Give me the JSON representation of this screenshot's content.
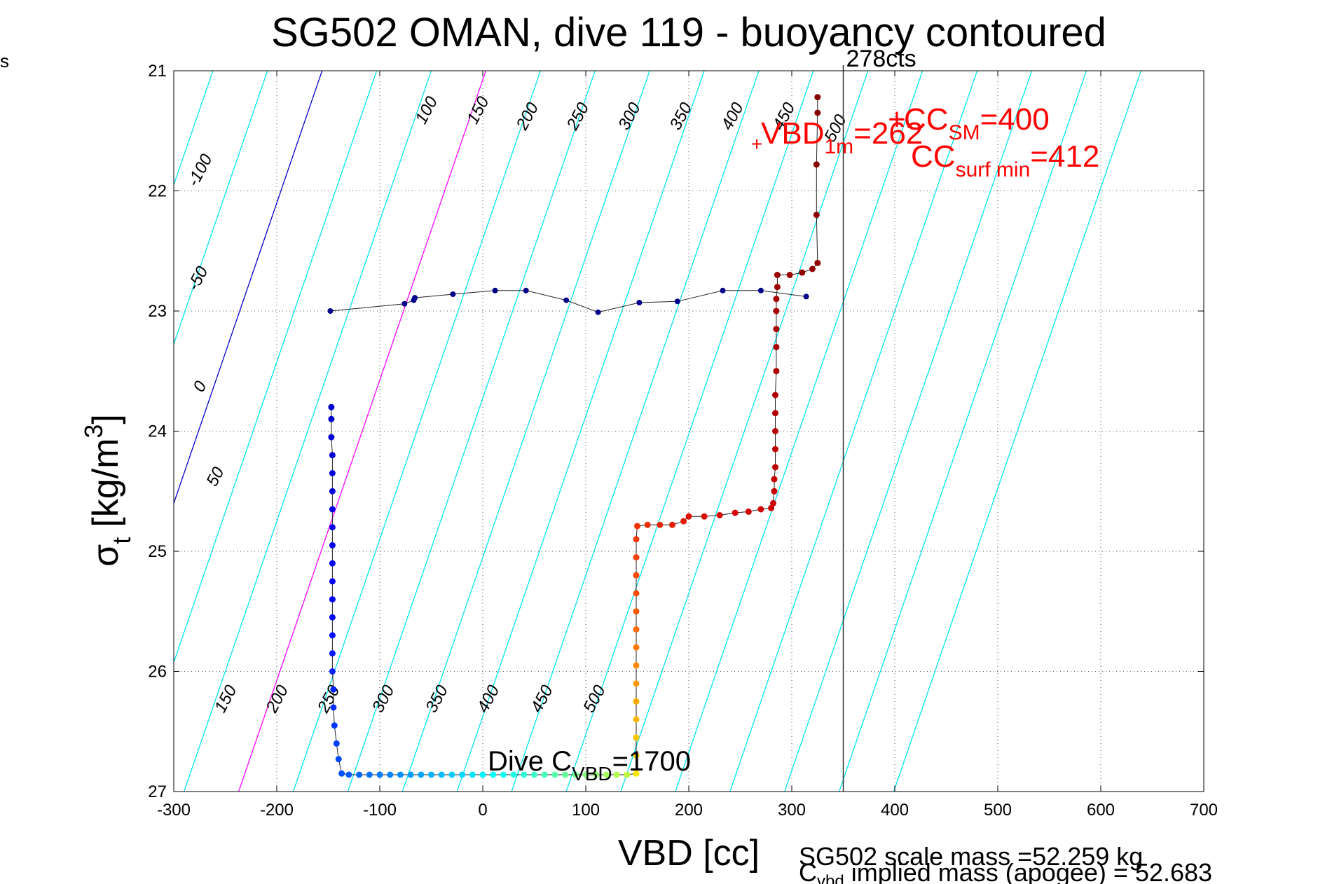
{
  "corner_label": "s",
  "chart_data": {
    "type": "scatter",
    "title": "SG502 OMAN, dive 119 - buoyancy contoured",
    "xlabel": "VBD [cc]",
    "ylabel_main": "σ",
    "ylabel_sub": "t",
    "ylabel_unit": "[kg/m",
    "ylabel_sup": "3",
    "ylabel_close": "]",
    "xlim": [
      -300,
      700
    ],
    "ylim": [
      27,
      21
    ],
    "y_reversed": true,
    "grid": true,
    "xticks": [
      -300,
      -200,
      -100,
      0,
      100,
      200,
      300,
      400,
      500,
      600,
      700
    ],
    "xtick_labels": [
      "-300",
      "-200",
      "-100",
      "0",
      "100",
      "200",
      "300",
      "400",
      "500",
      "600",
      "700"
    ],
    "yticks": [
      21,
      22,
      23,
      24,
      25,
      26,
      27
    ],
    "ytick_labels": [
      "21",
      "22",
      "23",
      "24",
      "25",
      "26",
      "27"
    ],
    "contours": {
      "sigma_span_per_line": 6,
      "vbd_shift_over_span": 240,
      "lines": [
        {
          "x_at_bottom": -290,
          "color": "#00e5ee"
        },
        {
          "x_at_bottom": -237,
          "color": "#ff00ff"
        },
        {
          "x_at_bottom": -184,
          "color": "#00e5ee"
        },
        {
          "x_at_bottom": -131,
          "color": "#00e5ee"
        },
        {
          "x_at_bottom": -78,
          "color": "#00e5ee"
        },
        {
          "x_at_bottom": -25,
          "color": "#00e5ee"
        },
        {
          "x_at_bottom": 28,
          "color": "#00e5ee"
        },
        {
          "x_at_bottom": 81,
          "color": "#00e5ee"
        },
        {
          "x_at_bottom": 134,
          "color": "#00e5ee"
        },
        {
          "x_at_bottom": 187,
          "color": "#00e5ee"
        },
        {
          "x_at_bottom": 240,
          "color": "#00e5ee"
        },
        {
          "x_at_bottom": 293,
          "color": "#00e5ee"
        },
        {
          "x_at_bottom": 346,
          "color": "#00e5ee"
        },
        {
          "x_at_bottom": 399,
          "color": "#00e5ee"
        },
        {
          "x_at_bottom": -343,
          "color": "#00e5ee"
        },
        {
          "x_at_bottom": -396,
          "color": "#0000cc"
        },
        {
          "x_at_bottom": -449,
          "color": "#00e5ee"
        },
        {
          "x_at_bottom": -502,
          "color": "#00e5ee"
        }
      ],
      "labels": [
        {
          "text": "-100",
          "x": -270,
          "y": 21.85
        },
        {
          "text": "-50",
          "x": -272,
          "y": 22.75
        },
        {
          "text": "0",
          "x": -270,
          "y": 23.65
        },
        {
          "text": "50",
          "x": -255,
          "y": 24.4
        },
        {
          "text": "100",
          "x": -50,
          "y": 21.35
        },
        {
          "text": "150",
          "x": 0,
          "y": 21.35
        },
        {
          "text": "200",
          "x": 48,
          "y": 21.4
        },
        {
          "text": "250",
          "x": 97,
          "y": 21.4
        },
        {
          "text": "300",
          "x": 147,
          "y": 21.4
        },
        {
          "text": "350",
          "x": 197,
          "y": 21.4
        },
        {
          "text": "400",
          "x": 247,
          "y": 21.4
        },
        {
          "text": "450",
          "x": 297,
          "y": 21.4
        },
        {
          "text": "500",
          "x": 347,
          "y": 21.5
        },
        {
          "text": "150",
          "x": -245,
          "y": 26.25
        },
        {
          "text": "200",
          "x": -195,
          "y": 26.25
        },
        {
          "text": "250",
          "x": -145,
          "y": 26.25
        },
        {
          "text": "300",
          "x": -92,
          "y": 26.25
        },
        {
          "text": "350",
          "x": -40,
          "y": 26.25
        },
        {
          "text": "400",
          "x": 10,
          "y": 26.25
        },
        {
          "text": "450",
          "x": 62,
          "y": 26.25
        },
        {
          "text": "500",
          "x": 113,
          "y": 26.25
        }
      ]
    },
    "reference_line": {
      "x": 350,
      "label": "278cts"
    },
    "series": [
      {
        "style": "dive",
        "color_scale": "jet",
        "points": [
          [
            -147,
            23.8
          ],
          [
            -147,
            23.9
          ],
          [
            -147,
            24.05
          ],
          [
            -146,
            24.2
          ],
          [
            -146,
            24.35
          ],
          [
            -146,
            24.5
          ],
          [
            -146,
            24.65
          ],
          [
            -146,
            24.8
          ],
          [
            -146,
            24.95
          ],
          [
            -146,
            25.1
          ],
          [
            -146,
            25.25
          ],
          [
            -146,
            25.4
          ],
          [
            -146,
            25.55
          ],
          [
            -146,
            25.7
          ],
          [
            -146,
            25.85
          ],
          [
            -146,
            26.0
          ],
          [
            -145,
            26.15
          ],
          [
            -145,
            26.3
          ],
          [
            -144,
            26.45
          ],
          [
            -142,
            26.6
          ],
          [
            -140,
            26.73
          ],
          [
            -137,
            26.85
          ],
          [
            -130,
            26.86
          ],
          [
            -120,
            26.86
          ],
          [
            -110,
            26.86
          ],
          [
            -100,
            26.86
          ],
          [
            -90,
            26.86
          ],
          [
            -80,
            26.86
          ],
          [
            -70,
            26.86
          ],
          [
            -60,
            26.86
          ],
          [
            -50,
            26.86
          ],
          [
            -40,
            26.86
          ],
          [
            -30,
            26.86
          ],
          [
            -20,
            26.86
          ],
          [
            -10,
            26.86
          ],
          [
            0,
            26.86
          ],
          [
            10,
            26.86
          ],
          [
            20,
            26.86
          ],
          [
            30,
            26.86
          ],
          [
            40,
            26.86
          ],
          [
            50,
            26.86
          ],
          [
            60,
            26.86
          ],
          [
            70,
            26.86
          ],
          [
            80,
            26.86
          ],
          [
            90,
            26.86
          ],
          [
            100,
            26.86
          ],
          [
            110,
            26.86
          ],
          [
            120,
            26.86
          ],
          [
            130,
            26.86
          ],
          [
            140,
            26.86
          ],
          [
            149,
            26.85
          ]
        ]
      },
      {
        "style": "climb",
        "color_scale": "autumn",
        "points": [
          [
            149,
            26.85
          ],
          [
            149,
            26.7
          ],
          [
            149,
            26.55
          ],
          [
            149,
            26.4
          ],
          [
            149,
            26.25
          ],
          [
            149,
            26.1
          ],
          [
            149,
            25.95
          ],
          [
            149,
            25.8
          ],
          [
            149,
            25.65
          ],
          [
            149,
            25.5
          ],
          [
            149,
            25.35
          ],
          [
            149,
            25.2
          ],
          [
            149,
            25.05
          ],
          [
            149,
            24.9
          ],
          [
            150,
            24.79
          ],
          [
            160,
            24.78
          ],
          [
            172,
            24.78
          ],
          [
            184,
            24.78
          ],
          [
            195,
            24.75
          ],
          [
            200,
            24.71
          ],
          [
            215,
            24.71
          ],
          [
            230,
            24.7
          ],
          [
            245,
            24.68
          ],
          [
            258,
            24.67
          ],
          [
            270,
            24.65
          ],
          [
            280,
            24.64
          ],
          [
            282,
            24.6
          ],
          [
            283,
            24.5
          ],
          [
            283,
            24.4
          ],
          [
            284,
            24.3
          ],
          [
            284,
            24.15
          ],
          [
            284,
            24.0
          ],
          [
            284,
            23.85
          ],
          [
            284,
            23.7
          ],
          [
            285,
            23.5
          ],
          [
            285,
            23.3
          ],
          [
            285,
            23.15
          ],
          [
            285,
            23.0
          ],
          [
            285,
            22.9
          ],
          [
            286,
            22.8
          ],
          [
            286,
            22.7
          ],
          [
            298,
            22.7
          ],
          [
            310,
            22.68
          ],
          [
            320,
            22.65
          ],
          [
            325,
            22.6
          ],
          [
            324,
            22.2
          ],
          [
            324,
            21.78
          ],
          [
            325,
            21.35
          ],
          [
            325,
            21.22
          ]
        ]
      },
      {
        "style": "connector",
        "color": "#00008b",
        "points": [
          [
            -148,
            23.0
          ],
          [
            -76,
            22.94
          ],
          [
            -67,
            22.91
          ],
          [
            -66,
            22.89
          ],
          [
            -29,
            22.86
          ],
          [
            12,
            22.83
          ],
          [
            42,
            22.83
          ],
          [
            81,
            22.91
          ],
          [
            112,
            23.01
          ],
          [
            152,
            22.93
          ],
          [
            189,
            22.92
          ],
          [
            233,
            22.83
          ],
          [
            270,
            22.83
          ],
          [
            314,
            22.88
          ]
        ]
      }
    ],
    "annotations": {
      "dive_cvbd_prefix": "Dive C",
      "dive_cvbd_sub": "VBD",
      "dive_cvbd_value": "=1700",
      "vbd1m_prefix": "VBD",
      "vbd1m_sub": "1m",
      "vbd1m_value": "=262",
      "ccsm_prefix": "CC",
      "ccsm_sub": "SM",
      "ccsm_value": "=400",
      "ccsurf_prefix": "CC",
      "ccsurf_sub": "surf min",
      "ccsurf_value": "=412",
      "scale_mass": "SG502 scale mass =52.259 kg",
      "implied_prefix": "C",
      "implied_sub": "vbd",
      "implied_text": " implied mass (apogee) = 52.683"
    }
  }
}
